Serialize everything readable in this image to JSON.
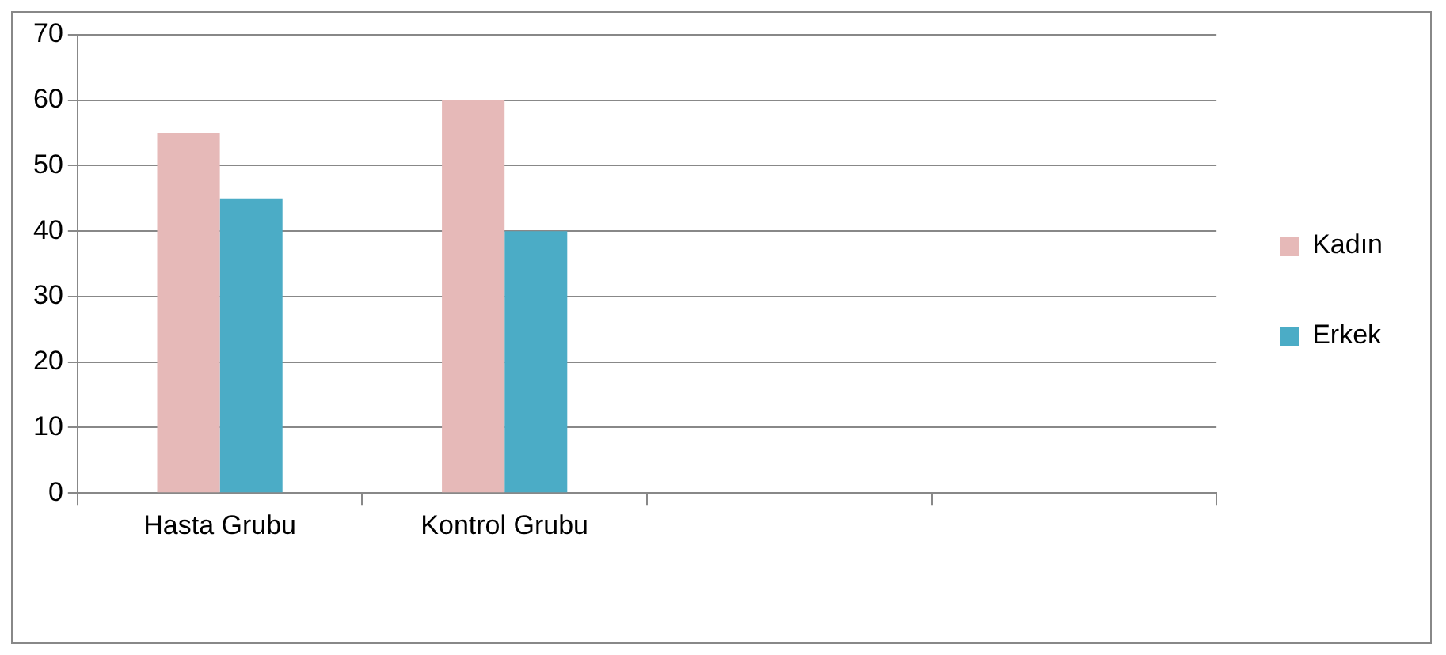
{
  "chart_data": {
    "type": "bar",
    "categories": [
      "Hasta Grubu",
      "Kontrol Grubu",
      null,
      null
    ],
    "series": [
      {
        "name": "Kadın",
        "color": "#e6b9b8",
        "values": [
          55,
          60,
          null,
          null
        ]
      },
      {
        "name": "Erkek",
        "color": "#4bacc6",
        "values": [
          45,
          40,
          null,
          null
        ]
      }
    ],
    "ylim": [
      0,
      70
    ],
    "yticks": [
      0,
      10,
      20,
      30,
      40,
      50,
      60,
      70
    ],
    "grid": "y",
    "legend": "right"
  }
}
